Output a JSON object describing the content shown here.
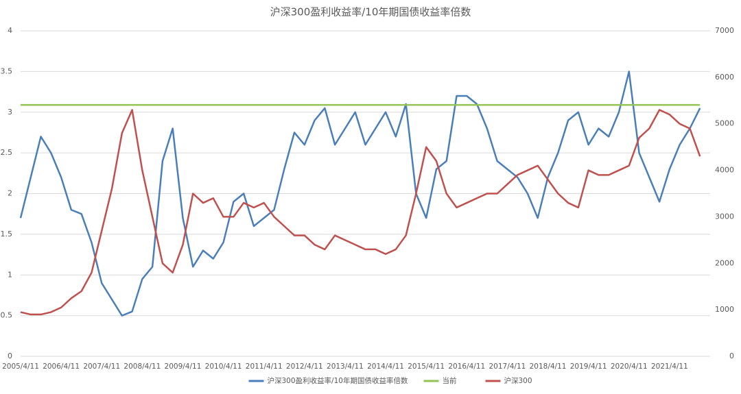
{
  "chart_data": {
    "type": "line",
    "title": "沪深300盈利收益率/10年期国债收益率倍数",
    "categories": [
      "2005/4/11",
      null,
      null,
      null,
      "2006/4/11",
      null,
      null,
      null,
      "2007/4/11",
      null,
      null,
      null,
      "2008/4/11",
      null,
      null,
      null,
      "2009/4/11",
      null,
      null,
      null,
      "2010/4/11",
      null,
      null,
      null,
      "2011/4/11",
      null,
      null,
      null,
      "2012/4/11",
      null,
      null,
      null,
      "2013/4/11",
      null,
      null,
      null,
      "2014/4/11",
      null,
      null,
      null,
      "2015/4/11",
      null,
      null,
      null,
      "2016/4/11",
      null,
      null,
      null,
      "2017/4/11",
      null,
      null,
      null,
      "2018/4/11",
      null,
      null,
      null,
      "2019/4/11",
      null,
      null,
      null,
      "2020/4/11",
      null,
      null,
      null,
      "2021/4/11",
      null,
      null,
      null
    ],
    "series": [
      {
        "name": "沪深300盈利收益率/10年期国债收益率倍数",
        "color": "#4a7ebb",
        "axis": "y",
        "values": [
          1.7,
          2.2,
          2.7,
          2.5,
          2.2,
          1.8,
          1.75,
          1.4,
          0.9,
          0.7,
          0.5,
          0.55,
          0.95,
          1.1,
          2.4,
          2.8,
          1.7,
          1.1,
          1.3,
          1.2,
          1.4,
          1.9,
          2.0,
          1.6,
          1.7,
          1.8,
          2.3,
          2.75,
          2.6,
          2.9,
          3.05,
          2.6,
          2.8,
          3.0,
          2.6,
          2.8,
          3.0,
          2.7,
          3.1,
          2.0,
          1.7,
          2.3,
          2.4,
          3.2,
          3.2,
          3.1,
          2.8,
          2.4,
          2.3,
          2.2,
          2.0,
          1.7,
          2.2,
          2.5,
          2.9,
          3.0,
          2.6,
          2.8,
          2.7,
          3.0,
          3.5,
          2.5,
          2.2,
          1.9,
          2.3,
          2.6,
          2.8,
          3.05
        ]
      },
      {
        "name": "当前",
        "color": "#92c353",
        "axis": "y",
        "values": [
          3.09,
          3.09,
          3.09,
          3.09,
          3.09,
          3.09,
          3.09,
          3.09,
          3.09,
          3.09,
          3.09,
          3.09,
          3.09,
          3.09,
          3.09,
          3.09,
          3.09,
          3.09,
          3.09,
          3.09,
          3.09,
          3.09,
          3.09,
          3.09,
          3.09,
          3.09,
          3.09,
          3.09,
          3.09,
          3.09,
          3.09,
          3.09,
          3.09,
          3.09,
          3.09,
          3.09,
          3.09,
          3.09,
          3.09,
          3.09,
          3.09,
          3.09,
          3.09,
          3.09,
          3.09,
          3.09,
          3.09,
          3.09,
          3.09,
          3.09,
          3.09,
          3.09,
          3.09,
          3.09,
          3.09,
          3.09,
          3.09,
          3.09,
          3.09,
          3.09,
          3.09,
          3.09,
          3.09,
          3.09,
          3.09,
          3.09,
          3.09,
          3.09
        ]
      },
      {
        "name": "沪深300",
        "color": "#c0504d",
        "axis": "y2",
        "values": [
          950,
          900,
          900,
          950,
          1050,
          1250,
          1400,
          1800,
          2700,
          3600,
          4800,
          5300,
          4000,
          3000,
          2000,
          1800,
          2400,
          3500,
          3300,
          3400,
          3000,
          3000,
          3300,
          3200,
          3300,
          3000,
          2800,
          2600,
          2600,
          2400,
          2300,
          2600,
          2500,
          2400,
          2300,
          2300,
          2200,
          2300,
          2600,
          3500,
          4500,
          4200,
          3500,
          3200,
          3300,
          3400,
          3500,
          3500,
          3700,
          3900,
          4000,
          4100,
          3800,
          3500,
          3300,
          3200,
          4000,
          3900,
          3900,
          4000,
          4100,
          4700,
          4900,
          5300,
          5200,
          5000,
          4900,
          4300
        ]
      }
    ],
    "ylim": [
      0,
      4
    ],
    "yticks": [
      0,
      0.5,
      1,
      1.5,
      2,
      2.5,
      3,
      3.5,
      4
    ],
    "y2lim": [
      0,
      7000
    ],
    "y2ticks": [
      0,
      1000,
      2000,
      3000,
      4000,
      5000,
      6000,
      7000
    ],
    "grid": true,
    "legend": "bottom"
  }
}
